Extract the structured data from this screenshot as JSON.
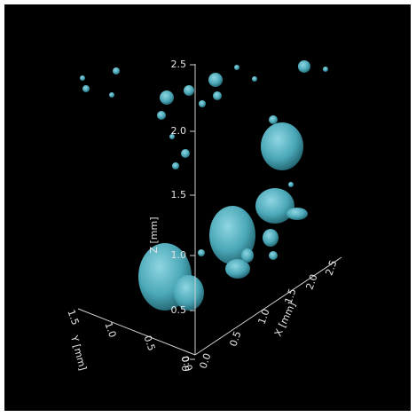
{
  "axes": {
    "z": {
      "label": "Z [mm]",
      "ticks": [
        "0.0",
        "0.5",
        "1.0",
        "1.5",
        "2.0",
        "2.5"
      ]
    },
    "x": {
      "label": "X [mm]",
      "ticks": [
        "0.0",
        "0.5",
        "1.0",
        "1.5",
        "2.0",
        "2.5"
      ]
    },
    "y": {
      "label": "Y [mm]",
      "ticks": [
        "0.0",
        "0.5",
        "1.0",
        "1.5"
      ]
    }
  }
}
